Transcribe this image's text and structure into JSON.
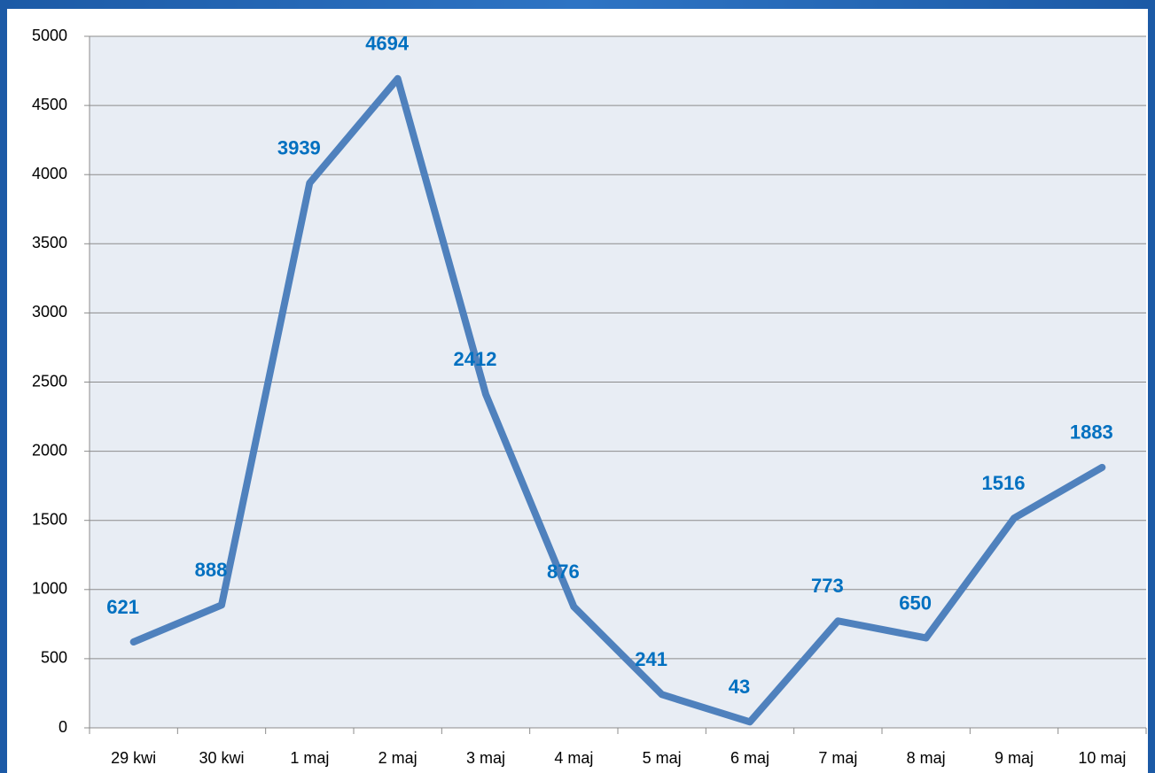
{
  "chart_data": {
    "type": "line",
    "categories": [
      "29 kwi",
      "30 kwi",
      "1 maj",
      "2 maj",
      "3 maj",
      "4 maj",
      "5 maj",
      "6 maj",
      "7 maj",
      "8 maj",
      "9 maj",
      "10 maj"
    ],
    "values": [
      621,
      888,
      3939,
      4694,
      2412,
      876,
      241,
      43,
      773,
      650,
      1516,
      1883
    ],
    "color": "#4f81bd",
    "label_color": "#0070c0",
    "ylim": [
      0,
      5000
    ],
    "yticks": [
      0,
      500,
      1000,
      1500,
      2000,
      2500,
      3000,
      3500,
      4000,
      4500,
      5000
    ],
    "grid": true
  }
}
